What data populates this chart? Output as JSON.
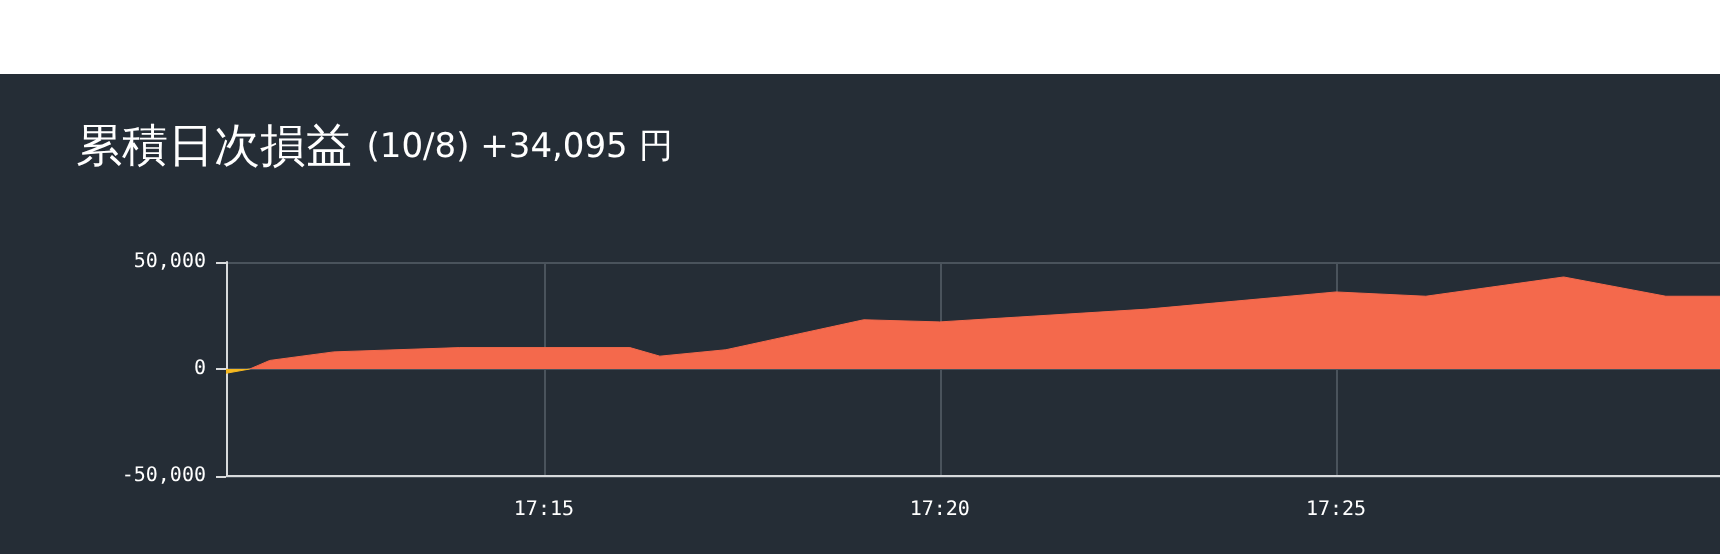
{
  "chart_data": {
    "type": "area",
    "title": "累積日次損益",
    "subtitle": "(10/8) +34,095 円",
    "series": [
      {
        "color": "#f5b820",
        "x": [
          17.1831,
          17.1881
        ],
        "values": [
          -2000,
          0
        ]
      },
      {
        "color": "#f4694c",
        "x": [
          17.1881,
          17.1923,
          17.2058,
          17.2323,
          17.2681,
          17.2744,
          17.2883,
          17.3173,
          17.3333,
          17.3771,
          17.4167,
          17.4356,
          17.4646,
          17.4861,
          17.4975
        ],
        "values": [
          0,
          4000,
          8000,
          10000,
          10000,
          6000,
          9000,
          23000,
          22000,
          28000,
          36000,
          34000,
          43000,
          34000,
          34000
        ]
      }
    ],
    "xlim": [
      17.1831,
      17.4975
    ],
    "xticks": [
      {
        "value": 17.25,
        "label": "17:15"
      },
      {
        "value": 17.3333,
        "label": "17:20"
      },
      {
        "value": 17.4167,
        "label": "17:25"
      }
    ],
    "ylim": [
      -50000,
      50000
    ],
    "yticks": [
      {
        "value": -50000,
        "label": "-50,000"
      },
      {
        "value": 0,
        "label": "0"
      },
      {
        "value": 50000,
        "label": "50,000"
      }
    ],
    "grid": true,
    "marker": "none"
  }
}
